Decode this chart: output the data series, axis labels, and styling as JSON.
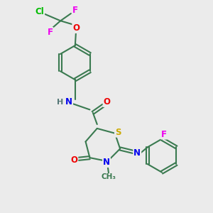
{
  "background_color": "#ebebeb",
  "bond_color": "#3a7a50",
  "atom_colors": {
    "N": "#0000ee",
    "O": "#ee0000",
    "S": "#ccaa00",
    "F": "#ee00ee",
    "Cl": "#00bb00",
    "H": "#557777",
    "C": "#3a7a50"
  },
  "figsize": [
    3.0,
    3.0
  ],
  "dpi": 100
}
